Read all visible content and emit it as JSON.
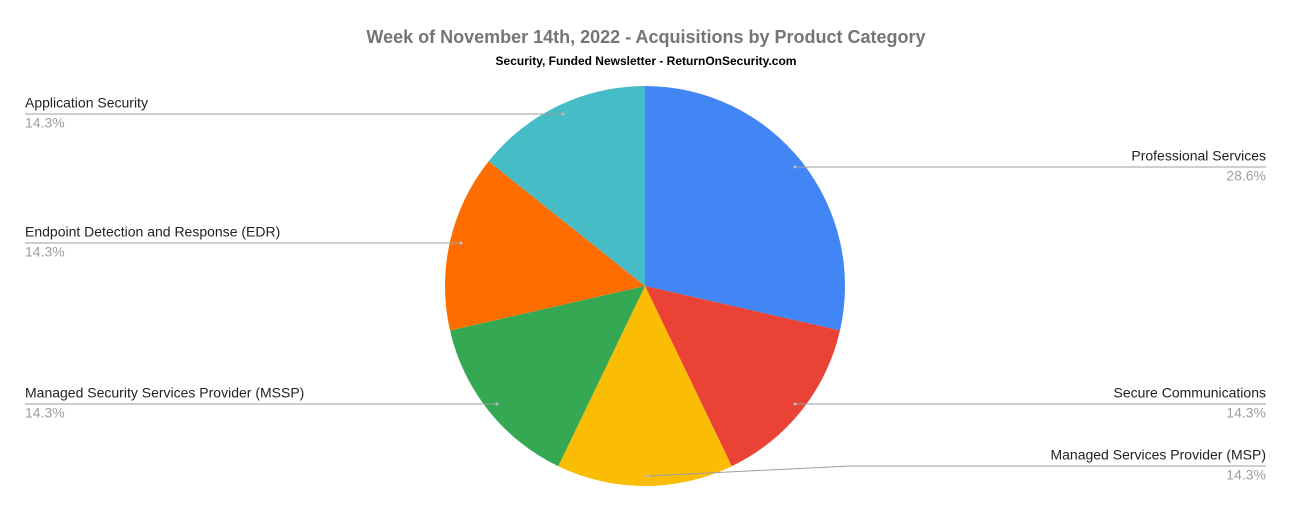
{
  "chart_data": {
    "type": "pie",
    "title": "Week of November 14th, 2022 - Acquisitions by Product Category",
    "subtitle": "Security, Funded Newsletter - ReturnOnSecurity.com",
    "categories": [
      "Professional Services",
      "Secure Communications",
      "Managed Services Provider (MSP)",
      "Managed Security Services Provider (MSSP)",
      "Endpoint Detection and Response (EDR)",
      "Application Security"
    ],
    "values": [
      28.6,
      14.3,
      14.3,
      14.3,
      14.3,
      14.3
    ],
    "value_labels": [
      "28.6%",
      "14.3%",
      "14.3%",
      "14.3%",
      "14.3%",
      "14.3%"
    ],
    "colors": [
      "#4285f4",
      "#ea4335",
      "#fbbc04",
      "#34a853",
      "#ff6d01",
      "#46bdc6"
    ]
  }
}
